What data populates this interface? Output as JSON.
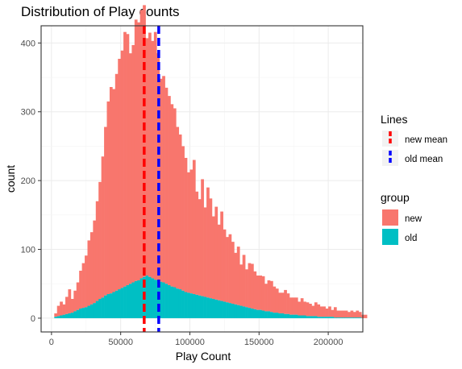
{
  "chart_data": {
    "type": "bar",
    "title": "Distribution of Play counts",
    "xlabel": "Play Count",
    "ylabel": "count",
    "xlim": [
      -7500,
      225000
    ],
    "ylim": [
      -20,
      425
    ],
    "xticks": [
      0,
      50000,
      100000,
      150000,
      200000
    ],
    "xtick_labels": [
      "0",
      "50000",
      "100000",
      "150000",
      "200000"
    ],
    "yticks": [
      0,
      100,
      200,
      300,
      400
    ],
    "ytick_labels": [
      "0",
      "100",
      "200",
      "300",
      "400"
    ],
    "grid": true,
    "bin_start": 0,
    "bin_width": 2000,
    "series": [
      {
        "name": "new",
        "color": "#F8766D",
        "values": [
          0,
          5,
          15,
          20,
          15,
          25,
          35,
          20,
          30,
          40,
          55,
          65,
          75,
          95,
          105,
          120,
          145,
          170,
          205,
          245,
          280,
          300,
          295,
          315,
          335,
          345,
          370,
          365,
          335,
          345,
          380,
          375,
          390,
          395,
          345,
          355,
          345,
          360,
          330,
          295,
          300,
          285,
          275,
          265,
          260,
          235,
          225,
          210,
          195,
          175,
          180,
          195,
          150,
          140,
          170,
          130,
          160,
          145,
          120,
          135,
          110,
          130,
          105,
          95,
          100,
          90,
          75,
          85,
          60,
          75,
          55,
          65,
          65,
          55,
          50,
          50,
          50,
          40,
          45,
          45,
          38,
          35,
          30,
          30,
          35,
          30,
          25,
          25,
          25,
          20,
          25,
          20,
          20,
          18,
          15,
          20,
          18,
          15,
          15,
          12,
          15,
          10,
          15,
          10,
          10,
          10,
          10,
          8,
          10,
          8,
          10,
          8,
          5,
          5
        ],
        "stack_on": "old"
      },
      {
        "name": "old",
        "color": "#00BFC4",
        "values": [
          0,
          2,
          3,
          4,
          5,
          6,
          7,
          8,
          10,
          12,
          14,
          15,
          16,
          18,
          20,
          22,
          25,
          28,
          30,
          33,
          35,
          36,
          38,
          40,
          42,
          44,
          46,
          48,
          50,
          52,
          54,
          55,
          58,
          60,
          62,
          60,
          58,
          56,
          55,
          53,
          52,
          50,
          48,
          46,
          45,
          43,
          42,
          40,
          38,
          37,
          36,
          35,
          34,
          33,
          32,
          31,
          30,
          29,
          28,
          27,
          26,
          25,
          24,
          23,
          22,
          21,
          20,
          19,
          18,
          17,
          16,
          15,
          14,
          13,
          12,
          12,
          11,
          10,
          10,
          9,
          8,
          8,
          7,
          7,
          6,
          6,
          5,
          5,
          5,
          4,
          4,
          4,
          3,
          3,
          3,
          3,
          2,
          2,
          2,
          2,
          2,
          2,
          1,
          1,
          1,
          1,
          1,
          1,
          1,
          1,
          1,
          1,
          0,
          0
        ]
      }
    ],
    "reference_lines": [
      {
        "name": "new mean",
        "x": 67000,
        "color": "#FF0000",
        "style": "dashed"
      },
      {
        "name": "old mean",
        "x": 77500,
        "color": "#0000FF",
        "style": "dashed"
      }
    ],
    "legends": [
      {
        "title": "Lines",
        "entries": [
          "new mean",
          "old mean"
        ]
      },
      {
        "title": "group",
        "entries": [
          "new",
          "old"
        ]
      }
    ]
  }
}
